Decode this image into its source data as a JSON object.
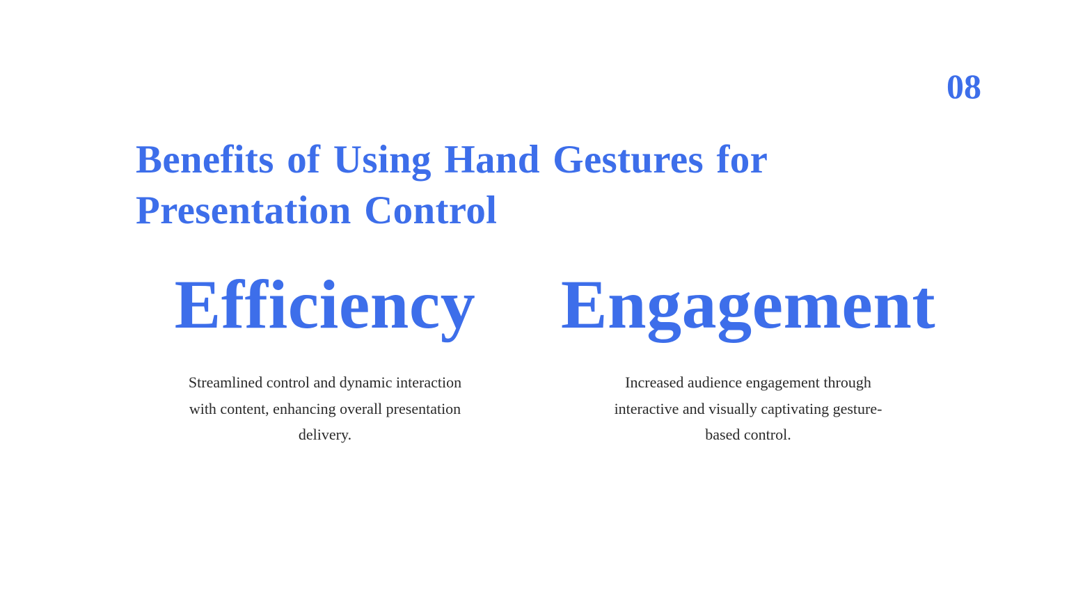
{
  "slide": {
    "page_number": "08",
    "title": "Benefits of Using Hand Gestures for Presentation Control",
    "benefits": [
      {
        "heading": "Efficiency",
        "description": "Streamlined control and dynamic interaction with content, enhancing overall presentation delivery."
      },
      {
        "heading": "Engagement",
        "description": "Increased audience engagement through interactive and visually captivating gesture-based control."
      }
    ]
  },
  "colors": {
    "accent": "#3d6eea",
    "body_text": "#2a2a2a",
    "background": "#ffffff"
  }
}
